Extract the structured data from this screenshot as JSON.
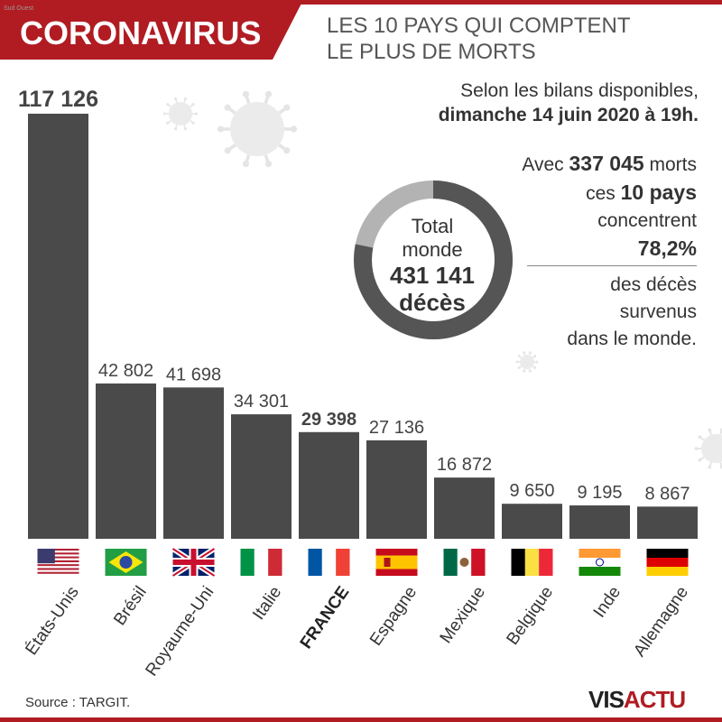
{
  "header": {
    "title": "CORONAVIRUS",
    "subtitle_line1": "LES 10 PAYS QUI COMPTENT",
    "subtitle_line2": "LE PLUS DE MORTS",
    "credit_small": "Sud Ouest"
  },
  "date": {
    "line1": "Selon les bilans disponibles,",
    "line2": "dimanche 14 juin 2020 à 19h."
  },
  "donut": {
    "line1": "Total",
    "line2": "monde",
    "value": "431 141",
    "unit": "décès",
    "total": 431141,
    "top10": 337045
  },
  "summary": {
    "t1": "Avec ",
    "v1": "337 045",
    "t2": " morts",
    "t3": "ces ",
    "v2": "10 pays",
    "t4": "concentrent",
    "v3": "78,2%",
    "t5": "des décès",
    "t6": "survenus",
    "t7": "dans le monde."
  },
  "colors": {
    "accent": "#b01c22",
    "bar": "#4a4a4a",
    "donut_main": "#555555",
    "donut_rest": "#b3b3b3"
  },
  "footer": {
    "source": "Source : TARGIT.",
    "logo_a": "VIS",
    "logo_b": "ACTU"
  },
  "chart_data": {
    "type": "bar",
    "title": "LES 10 PAYS QUI COMPTENT LE PLUS DE MORTS",
    "categories": [
      "États-Unis",
      "Brésil",
      "Royaume-Uni",
      "Italie",
      "FRANCE",
      "Espagne",
      "Mexique",
      "Belgique",
      "Inde",
      "Allemagne"
    ],
    "values": [
      117126,
      42802,
      41698,
      34301,
      29398,
      27136,
      16872,
      9650,
      9195,
      8867
    ],
    "labels": [
      "117 126",
      "42 802",
      "41 698",
      "34 301",
      "29 398",
      "27 136",
      "16 872",
      "9 650",
      "9 195",
      "8 867"
    ],
    "highlight": [
      "États-",
      "FRANCE"
    ],
    "flags": [
      "us-flag-icon",
      "brazil-flag-icon",
      "uk-flag-icon",
      "italy-flag-icon",
      "france-flag-icon",
      "spain-flag-icon",
      "mexico-flag-icon",
      "belgium-flag-icon",
      "india-flag-icon",
      "germany-flag-icon"
    ],
    "ylim": [
      0,
      117126
    ]
  }
}
